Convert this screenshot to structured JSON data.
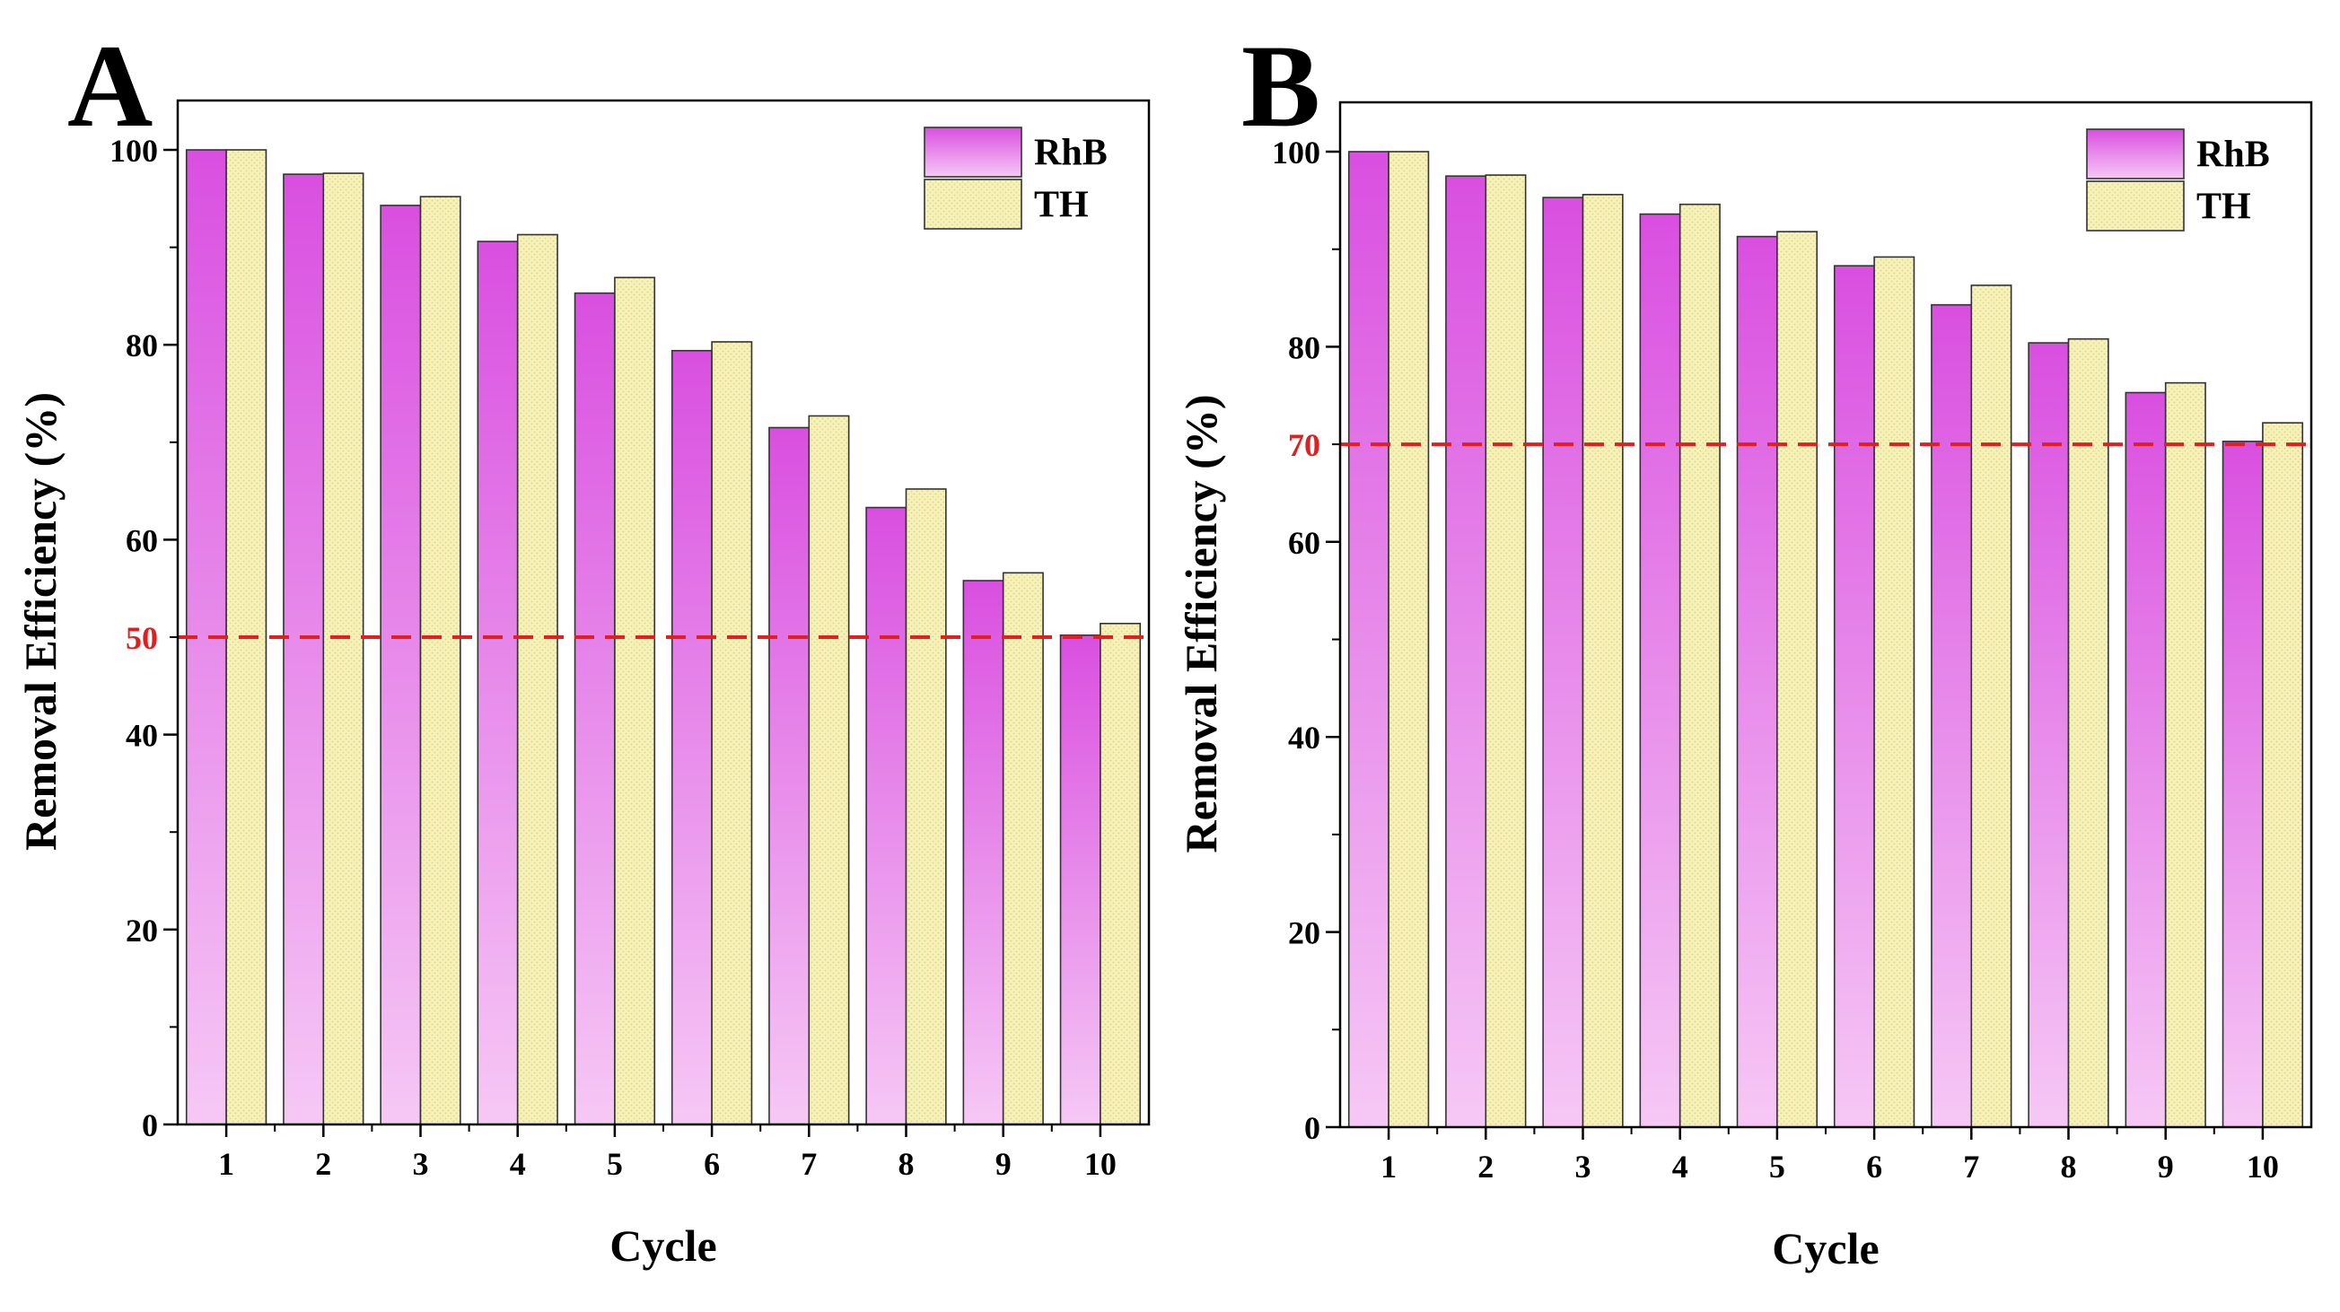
{
  "chart_data": [
    {
      "type": "bar",
      "panel_label": "A",
      "xlabel": "Cycle",
      "ylabel": "Removal Efficiency (%)",
      "categories": [
        "1",
        "2",
        "3",
        "4",
        "5",
        "6",
        "7",
        "8",
        "9",
        "10"
      ],
      "ylim": [
        0,
        100
      ],
      "yticks": [
        "0",
        "20",
        "40",
        "60",
        "80",
        "100"
      ],
      "series": [
        {
          "name": "RhB",
          "values": [
            100,
            97.5,
            94.3,
            90.6,
            85.3,
            79.4,
            71.5,
            63.3,
            55.8,
            50.2
          ]
        },
        {
          "name": "TH",
          "values": [
            100,
            97.6,
            95.2,
            91.3,
            86.9,
            80.3,
            72.7,
            65.2,
            56.6,
            51.4
          ]
        }
      ],
      "reference_line": {
        "value": 50,
        "label": "50",
        "color": "#e02020"
      },
      "legend_position": "top-right"
    },
    {
      "type": "bar",
      "panel_label": "B",
      "xlabel": "Cycle",
      "ylabel": "Removal Efficiency (%)",
      "categories": [
        "1",
        "2",
        "3",
        "4",
        "5",
        "6",
        "7",
        "8",
        "9",
        "10"
      ],
      "ylim": [
        0,
        100
      ],
      "yticks": [
        "0",
        "20",
        "40",
        "60",
        "80",
        "100"
      ],
      "series": [
        {
          "name": "RhB",
          "values": [
            100,
            97.5,
            95.3,
            93.6,
            91.3,
            88.3,
            84.3,
            80.4,
            75.3,
            70.3
          ]
        },
        {
          "name": "TH",
          "values": [
            100,
            97.6,
            95.6,
            94.6,
            91.8,
            89.2,
            86.3,
            80.8,
            76.3,
            72.2
          ]
        }
      ],
      "reference_line": {
        "value": 70,
        "label": "70",
        "color": "#e02020"
      },
      "legend_position": "top-right"
    }
  ],
  "colors": {
    "rhb_top": "#d94fe0",
    "rhb_bottom": "#f6c8f5",
    "th_fill": "#f5f1b8",
    "th_dot": "#dcd58a",
    "axis": "#000000"
  }
}
